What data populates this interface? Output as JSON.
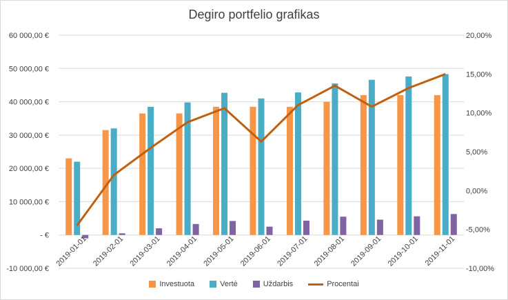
{
  "chart_data": {
    "type": "bar",
    "title": "Degiro portfelio grafikas",
    "categories": [
      "2019-01-01",
      "2019-02-01",
      "2019-03-01",
      "2019-04-01",
      "2019-05-01",
      "2019-06-01",
      "2019-07-01",
      "2019-08-01",
      "2019-09-01",
      "2019-10-01",
      "2019-11-01"
    ],
    "series": [
      {
        "name": "Investuota",
        "kind": "bar",
        "axis": "left",
        "color": "#f79646",
        "values": [
          23000,
          31500,
          36500,
          36500,
          38500,
          38500,
          38500,
          40000,
          42000,
          42000,
          42000
        ]
      },
      {
        "name": "Vertė",
        "kind": "bar",
        "axis": "left",
        "color": "#4bacc6",
        "values": [
          22000,
          32000,
          38500,
          39800,
          42700,
          41000,
          42800,
          45500,
          46600,
          47600,
          48300
        ]
      },
      {
        "name": "Uždarbis",
        "kind": "bar",
        "axis": "left",
        "color": "#8064a2",
        "values": [
          -1000,
          500,
          2000,
          3300,
          4200,
          2500,
          4300,
          5500,
          4600,
          5600,
          6300
        ]
      },
      {
        "name": "Procentai",
        "kind": "line",
        "axis": "right",
        "color": "#c0600f",
        "values": [
          -4.5,
          2.0,
          5.5,
          8.8,
          10.6,
          6.3,
          11.0,
          13.5,
          10.8,
          13.2,
          15.0
        ]
      }
    ],
    "y_left": {
      "min": -10000,
      "max": 60000,
      "ticks": [
        60000,
        50000,
        40000,
        30000,
        20000,
        10000,
        0,
        -10000
      ],
      "tick_labels": [
        "60 000,00 €",
        "50 000,00 €",
        "40 000,00 €",
        "30 000,00 €",
        "20 000,00 €",
        "10 000,00 €",
        "-   €",
        "-10 000,00 €"
      ]
    },
    "y_right": {
      "min": -10,
      "max": 20,
      "ticks": [
        20,
        15,
        10,
        5,
        0,
        -5,
        -10
      ],
      "tick_labels": [
        "20,00%",
        "15,00%",
        "10,00%",
        "5,00%",
        "0,00%",
        "-5,00%",
        "-10,00%"
      ]
    },
    "grid": true,
    "legend_position": "bottom"
  }
}
